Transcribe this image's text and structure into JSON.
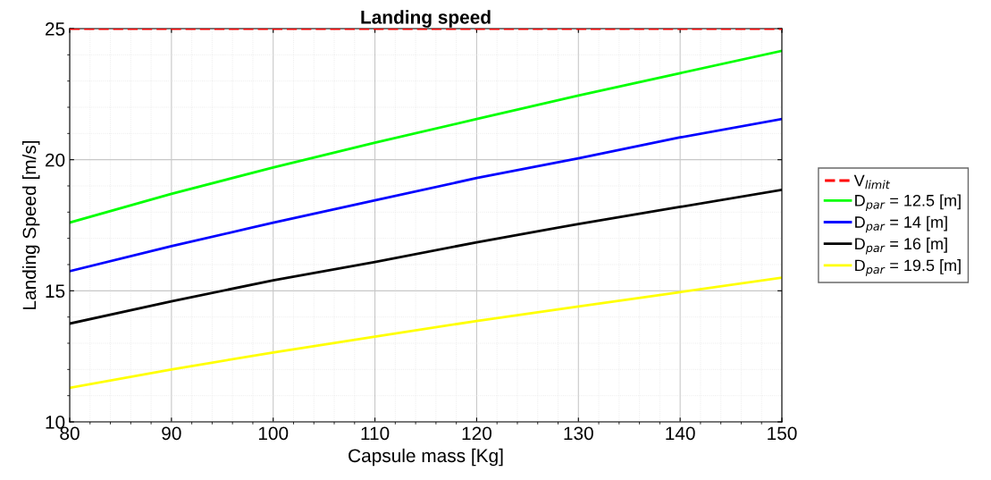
{
  "chart_data": {
    "type": "line",
    "title": "Landing speed",
    "xlabel": "Capsule mass [Kg]",
    "ylabel": "Landing Speed [m/s]",
    "x": [
      80,
      90,
      100,
      110,
      120,
      130,
      140,
      150
    ],
    "series": [
      {
        "name": "D$_{par}$ = 12.5 [m]",
        "color": "#00ff00",
        "values": [
          17.6,
          18.7,
          19.7,
          20.65,
          21.55,
          22.45,
          23.3,
          24.15
        ]
      },
      {
        "name": "D$_{par}$ = 14 [m]",
        "color": "#0000ff",
        "values": [
          15.75,
          16.7,
          17.6,
          18.45,
          19.3,
          20.05,
          20.85,
          21.55
        ]
      },
      {
        "name": "D$_{par}$ = 16 [m]",
        "color": "#000000",
        "values": [
          13.75,
          14.6,
          15.4,
          16.1,
          16.85,
          17.55,
          18.2,
          18.85
        ]
      },
      {
        "name": "D$_{par}$ = 19.5 [m]",
        "color": "#ffff00",
        "values": [
          11.3,
          12.0,
          12.65,
          13.25,
          13.85,
          14.4,
          14.95,
          15.5
        ]
      }
    ],
    "ref_lines": [
      {
        "axis": "y",
        "value": 25,
        "label": "V$_{limit}$",
        "color": "#ff0000",
        "line_style": "dashed"
      }
    ],
    "xlim": [
      80,
      150
    ],
    "ylim": [
      10,
      25
    ],
    "xticks": [
      80,
      90,
      100,
      110,
      120,
      130,
      140,
      150
    ],
    "yticks": [
      10,
      15,
      20,
      25
    ],
    "grid": true,
    "legend": "right",
    "marker": "none",
    "line_style": "solid"
  }
}
